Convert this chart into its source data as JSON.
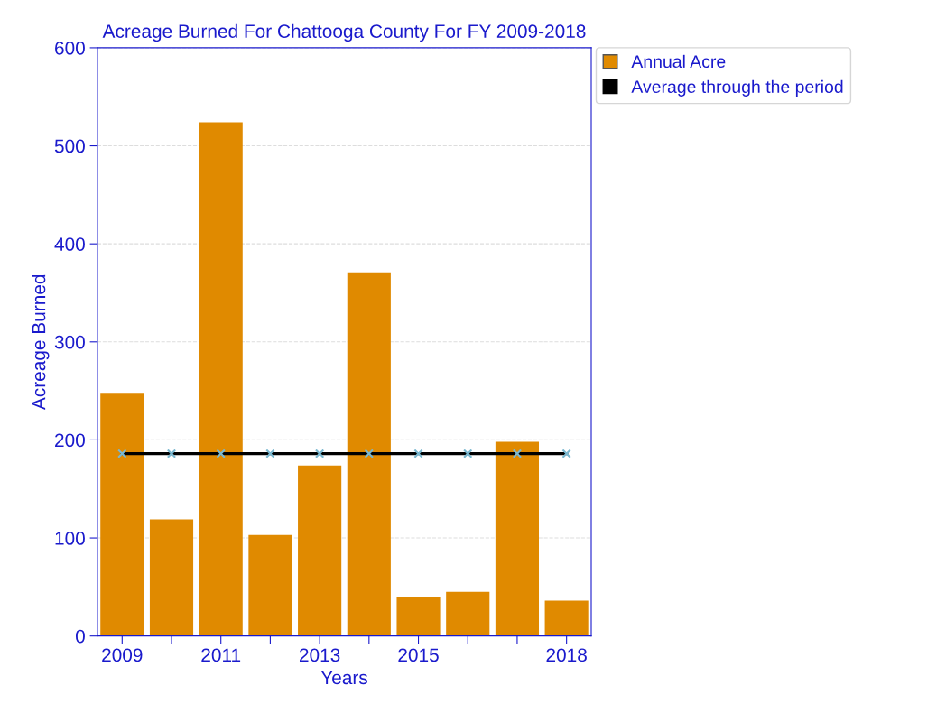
{
  "chart_data": {
    "type": "bar",
    "title": "Acreage Burned For Chattooga County For FY 2009-2018",
    "xlabel": "Years",
    "ylabel": "Acreage Burned",
    "categories": [
      "2009",
      null,
      "2011",
      null,
      "2013",
      null,
      "2015",
      null,
      null,
      "2018"
    ],
    "series": [
      {
        "name": "Annual Acre",
        "color": "#e08a00",
        "values": [
          248,
          119,
          524,
          103,
          174,
          371,
          40,
          45,
          198,
          36
        ]
      },
      {
        "name": "Average through the period",
        "type": "line",
        "color": "#000000",
        "marker": "cross",
        "values": [
          186,
          186,
          186,
          186,
          186,
          186,
          186,
          186,
          186,
          186
        ]
      }
    ],
    "ylim": [
      0,
      600
    ],
    "yticks": [
      0,
      100,
      200,
      300,
      400,
      500,
      600
    ],
    "grid": "y",
    "legend": "top right"
  }
}
